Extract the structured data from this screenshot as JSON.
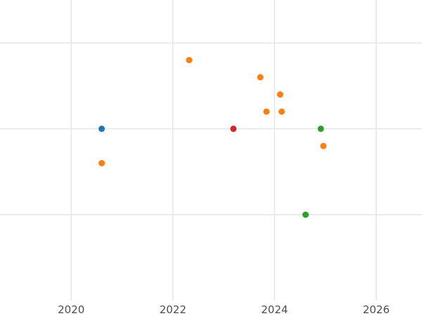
{
  "chart_data": {
    "type": "scatter",
    "title": "",
    "xlabel": "",
    "ylabel": "",
    "xlim": [
      2018.6,
      2026.9
    ],
    "ylim": [
      -2,
      1.5
    ],
    "x_ticks": [
      {
        "value": 2020,
        "label": "2020"
      },
      {
        "value": 2022,
        "label": "2022"
      },
      {
        "value": 2024,
        "label": "2024"
      },
      {
        "value": 2026,
        "label": "2026"
      }
    ],
    "y_gridlines": [
      -1,
      0,
      1
    ],
    "grid": true,
    "legend": "none",
    "series": [
      {
        "color": "#1f77b4",
        "points": [
          {
            "x": 2020.6,
            "y": 0
          }
        ]
      },
      {
        "color": "#ff7f0e",
        "points": [
          {
            "x": 2020.6,
            "y": -0.4
          },
          {
            "x": 2022.32,
            "y": 0.8
          },
          {
            "x": 2023.72,
            "y": 0.6
          },
          {
            "x": 2024.11,
            "y": 0.4
          },
          {
            "x": 2023.84,
            "y": 0.2
          },
          {
            "x": 2024.14,
            "y": 0.2
          },
          {
            "x": 2024.96,
            "y": -0.2
          }
        ]
      },
      {
        "color": "#2ca02c",
        "points": [
          {
            "x": 2024.91,
            "y": 0
          },
          {
            "x": 2024.61,
            "y": -1
          }
        ]
      },
      {
        "color": "#d62728",
        "points": [
          {
            "x": 2023.19,
            "y": 0
          }
        ]
      }
    ]
  }
}
